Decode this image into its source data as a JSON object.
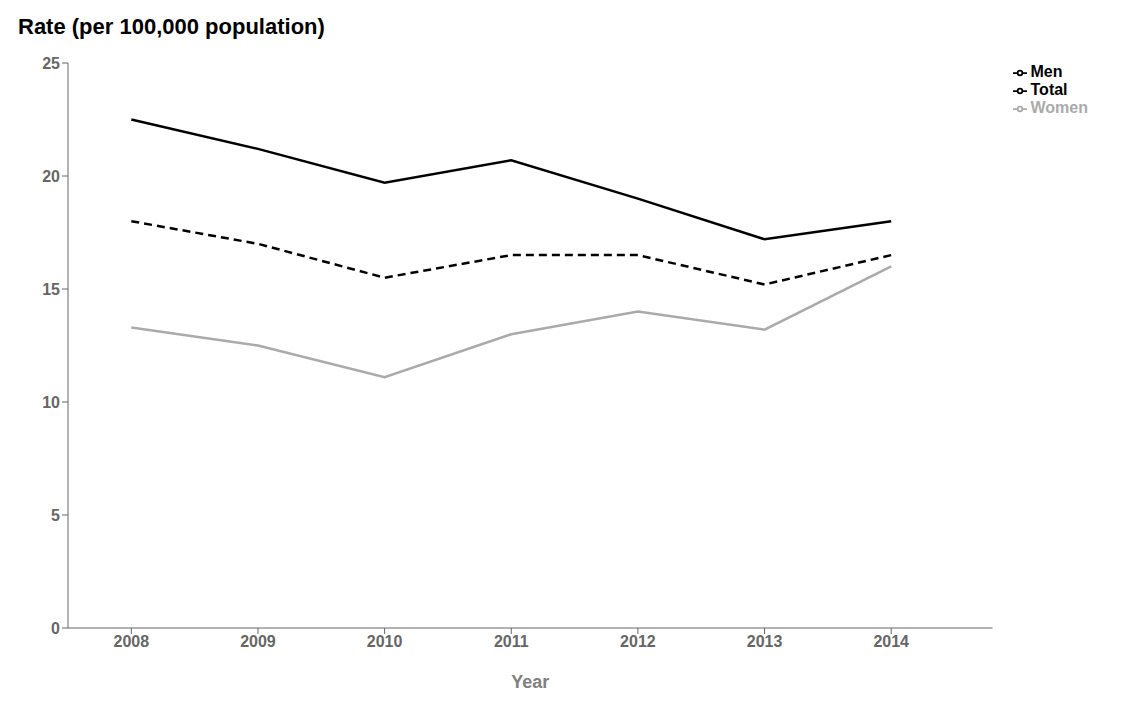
{
  "chart_data": {
    "type": "line",
    "title": "Rate (per 100,000 population)",
    "xlabel": "Year",
    "x": [
      2008,
      2009,
      2010,
      2011,
      2012,
      2013,
      2014
    ],
    "series": [
      {
        "name": "Total",
        "color": "#000000",
        "line_style": "dashed",
        "values": [
          18.0,
          17.0,
          15.5,
          16.5,
          16.5,
          15.2,
          16.5
        ]
      },
      {
        "name": "Men",
        "color": "#000000",
        "line_style": "solid",
        "values": [
          22.5,
          21.2,
          19.7,
          20.7,
          19.0,
          17.2,
          18.0
        ]
      },
      {
        "name": "Women",
        "color": "#aaaaaa",
        "line_style": "solid",
        "values": [
          13.3,
          12.5,
          11.1,
          13.0,
          14.0,
          13.2,
          16.0
        ]
      }
    ],
    "xlim": [
      2007.5,
      2014.8
    ],
    "xticks": [
      2008,
      2009,
      2010,
      2011,
      2012,
      2013,
      2014
    ],
    "ylim": [
      0,
      25
    ],
    "yticks": [
      0,
      5,
      10,
      15,
      20,
      25
    ],
    "legend": "upper right",
    "grid": false
  }
}
